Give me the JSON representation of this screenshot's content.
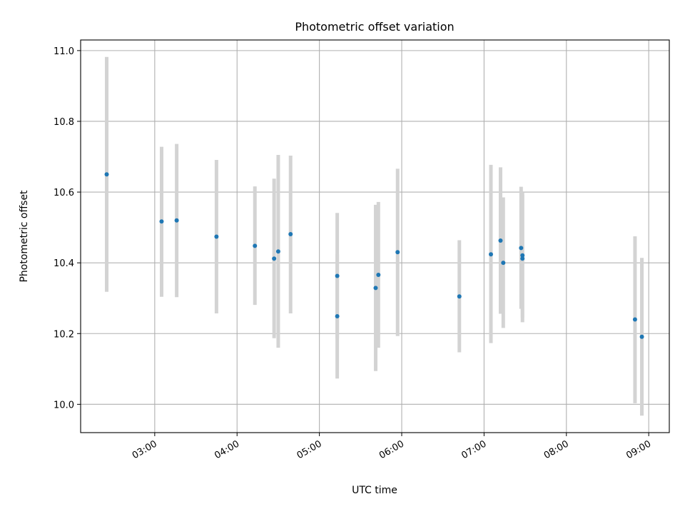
{
  "chart_data": {
    "type": "scatter",
    "title": "Photometric offset variation",
    "xlabel": "UTC time",
    "ylabel": "Photometric offset",
    "x_tick_labels": [
      "03:00",
      "04:00",
      "05:00",
      "06:00",
      "07:00",
      "08:00",
      "09:00"
    ],
    "x_tick_values": [
      "03:00",
      "04:00",
      "05:00",
      "06:00",
      "07:00",
      "08:00",
      "09:00"
    ],
    "y_tick_labels": [
      "10.0",
      "10.2",
      "10.4",
      "10.6",
      "10.8",
      "11.0"
    ],
    "y_tick_values": [
      10.0,
      10.2,
      10.4,
      10.6,
      10.8,
      11.0
    ],
    "xlim": [
      "02:06",
      "09:15"
    ],
    "ylim": [
      9.92,
      11.03
    ],
    "grid": true,
    "colors": {
      "marker": "#1f77b4",
      "errorbar": "#d3d3d3",
      "grid": "#b0b0b0"
    },
    "series": [
      {
        "points": [
          {
            "x": "02:25",
            "y": 10.65,
            "ylo": 10.318,
            "yhi": 10.982
          },
          {
            "x": "03:05",
            "y": 10.517,
            "ylo": 10.304,
            "yhi": 10.728
          },
          {
            "x": "03:16",
            "y": 10.52,
            "ylo": 10.303,
            "yhi": 10.736
          },
          {
            "x": "03:45",
            "y": 10.474,
            "ylo": 10.257,
            "yhi": 10.691
          },
          {
            "x": "04:13",
            "y": 10.448,
            "ylo": 10.281,
            "yhi": 10.616
          },
          {
            "x": "04:27",
            "y": 10.412,
            "ylo": 10.187,
            "yhi": 10.638
          },
          {
            "x": "04:30",
            "y": 10.432,
            "ylo": 10.16,
            "yhi": 10.705
          },
          {
            "x": "04:39",
            "y": 10.481,
            "ylo": 10.257,
            "yhi": 10.703
          },
          {
            "x": "05:13",
            "y": 10.363,
            "ylo": 10.187,
            "yhi": 10.541
          },
          {
            "x": "05:13",
            "y": 10.249,
            "ylo": 10.073,
            "yhi": 10.424
          },
          {
            "x": "05:41",
            "y": 10.329,
            "ylo": 10.094,
            "yhi": 10.564
          },
          {
            "x": "05:43",
            "y": 10.366,
            "ylo": 10.16,
            "yhi": 10.572
          },
          {
            "x": "05:57",
            "y": 10.43,
            "ylo": 10.193,
            "yhi": 10.666
          },
          {
            "x": "06:42",
            "y": 10.305,
            "ylo": 10.147,
            "yhi": 10.464
          },
          {
            "x": "07:05",
            "y": 10.424,
            "ylo": 10.173,
            "yhi": 10.677
          },
          {
            "x": "07:12",
            "y": 10.463,
            "ylo": 10.256,
            "yhi": 10.67
          },
          {
            "x": "07:14",
            "y": 10.4,
            "ylo": 10.216,
            "yhi": 10.585
          },
          {
            "x": "07:27",
            "y": 10.442,
            "ylo": 10.27,
            "yhi": 10.615
          },
          {
            "x": "07:28",
            "y": 10.421,
            "ylo": 10.245,
            "yhi": 10.598
          },
          {
            "x": "07:28",
            "y": 10.412,
            "ylo": 10.232,
            "yhi": 10.592
          },
          {
            "x": "08:50",
            "y": 10.24,
            "ylo": 10.003,
            "yhi": 10.475
          },
          {
            "x": "08:55",
            "y": 10.191,
            "ylo": 9.968,
            "yhi": 10.414
          }
        ]
      }
    ]
  }
}
